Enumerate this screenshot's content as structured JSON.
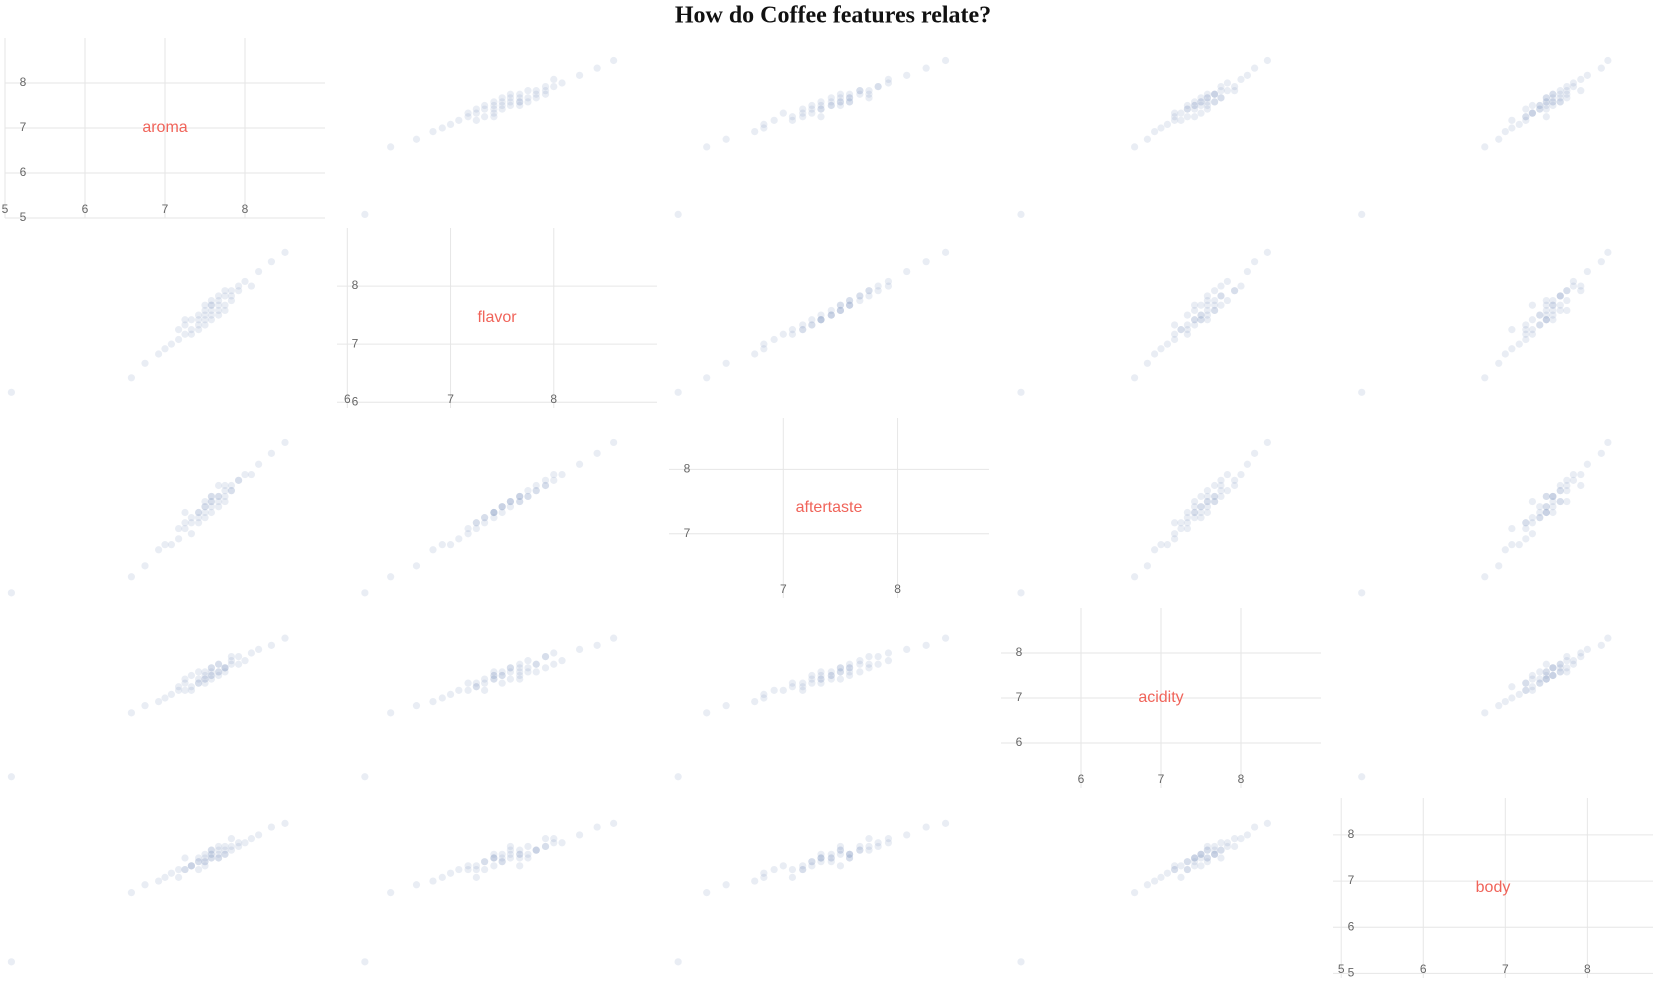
{
  "chart_data": {
    "type": "scatter_matrix",
    "title": "How do Coffee features relate?",
    "point_color": "#8fa6c8",
    "label_color": "#f0645a",
    "features": [
      {
        "name": "aroma",
        "lim": [
          5,
          9
        ],
        "ticks": [
          5,
          6,
          7,
          8
        ]
      },
      {
        "name": "flavor",
        "lim": [
          5.9,
          9
        ],
        "ticks": [
          6,
          7,
          8
        ]
      },
      {
        "name": "aftertaste",
        "lim": [
          6,
          8.8
        ],
        "ticks": [
          7,
          8
        ]
      },
      {
        "name": "acidity",
        "lim": [
          5,
          9
        ],
        "ticks": [
          6,
          7,
          8
        ]
      },
      {
        "name": "body",
        "lim": [
          4.9,
          8.8
        ],
        "ticks": [
          5,
          6,
          7,
          8
        ]
      }
    ],
    "samples": [
      [
        7.67,
        7.75,
        7.58,
        7.58,
        7.5
      ],
      [
        7.5,
        7.42,
        7.33,
        7.5,
        7.58
      ],
      [
        7.83,
        7.83,
        7.67,
        7.75,
        7.67
      ],
      [
        7.25,
        7.17,
        7.08,
        7.33,
        7.25
      ],
      [
        7.58,
        7.67,
        7.5,
        7.58,
        7.67
      ],
      [
        8.0,
        8.08,
        7.92,
        7.83,
        7.83
      ],
      [
        7.42,
        7.33,
        7.25,
        7.42,
        7.42
      ],
      [
        7.33,
        7.25,
        7.17,
        7.25,
        7.33
      ],
      [
        7.75,
        7.67,
        7.58,
        7.67,
        7.58
      ],
      [
        7.17,
        7.08,
        6.92,
        7.17,
        7.25
      ],
      [
        7.58,
        7.5,
        7.42,
        7.5,
        7.5
      ],
      [
        7.92,
        7.92,
        7.83,
        7.92,
        7.75
      ],
      [
        7.5,
        7.58,
        7.42,
        7.42,
        7.5
      ],
      [
        7.08,
        7.0,
        6.83,
        7.08,
        7.17
      ],
      [
        7.67,
        7.58,
        7.5,
        7.58,
        7.75
      ],
      [
        8.17,
        8.25,
        8.08,
        8.08,
        8.0
      ],
      [
        7.42,
        7.5,
        7.33,
        7.33,
        7.42
      ],
      [
        7.58,
        7.75,
        7.58,
        7.67,
        7.58
      ],
      [
        6.92,
        6.83,
        6.75,
        6.92,
        7.0
      ],
      [
        7.75,
        7.83,
        7.67,
        7.58,
        7.67
      ],
      [
        7.33,
        7.42,
        7.25,
        7.5,
        7.33
      ],
      [
        7.67,
        7.67,
        7.58,
        7.75,
        7.5
      ],
      [
        7.5,
        7.33,
        7.25,
        7.33,
        7.42
      ],
      [
        8.33,
        8.42,
        8.25,
        8.17,
        8.17
      ],
      [
        7.25,
        7.33,
        7.17,
        7.17,
        7.25
      ],
      [
        7.58,
        7.58,
        7.5,
        7.67,
        7.67
      ],
      [
        7.83,
        7.75,
        7.67,
        7.83,
        7.75
      ],
      [
        7.42,
        7.42,
        7.33,
        7.58,
        7.5
      ],
      [
        6.75,
        6.67,
        6.5,
        6.83,
        6.92
      ],
      [
        7.67,
        7.5,
        7.42,
        7.5,
        7.58
      ],
      [
        7.92,
        8.0,
        7.83,
        7.75,
        7.83
      ],
      [
        7.5,
        7.67,
        7.5,
        7.42,
        7.33
      ],
      [
        7.17,
        7.25,
        7.08,
        7.25,
        7.08
      ],
      [
        7.75,
        7.92,
        7.75,
        7.67,
        7.75
      ],
      [
        7.58,
        7.42,
        7.33,
        7.42,
        7.5
      ],
      [
        8.08,
        8.0,
        7.92,
        8.0,
        7.92
      ],
      [
        7.33,
        7.17,
        7.0,
        7.17,
        7.33
      ],
      [
        7.67,
        7.83,
        7.75,
        7.75,
        7.67
      ],
      [
        6.58,
        6.42,
        6.33,
        6.67,
        6.75
      ],
      [
        7.5,
        7.5,
        7.42,
        7.58,
        7.42
      ],
      [
        7.83,
        7.92,
        7.75,
        7.92,
        7.92
      ],
      [
        7.42,
        7.25,
        7.17,
        7.33,
        7.25
      ],
      [
        8.5,
        8.58,
        8.42,
        8.33,
        8.25
      ],
      [
        7.25,
        7.42,
        7.33,
        7.42,
        7.5
      ],
      [
        7.58,
        7.67,
        7.58,
        7.5,
        7.58
      ],
      [
        7.0,
        6.92,
        6.83,
        7.0,
        7.08
      ],
      [
        7.75,
        7.58,
        7.5,
        7.67,
        7.58
      ],
      [
        5.08,
        6.17,
        6.08,
        5.25,
        5.25
      ]
    ]
  }
}
